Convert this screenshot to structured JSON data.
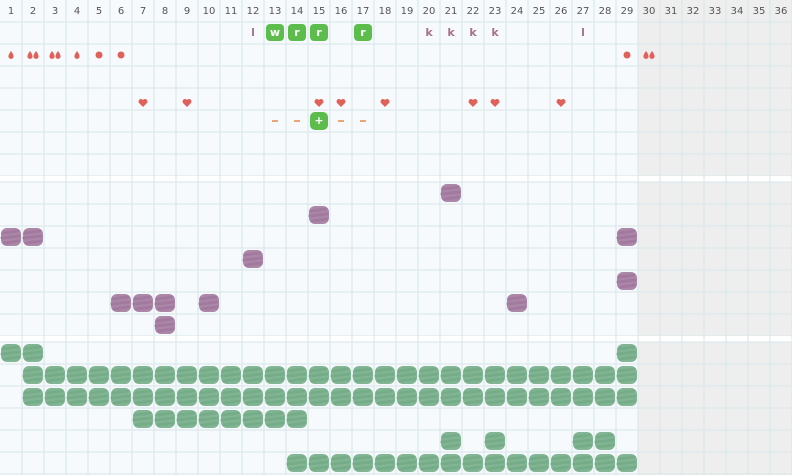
{
  "columns": [
    1,
    2,
    3,
    4,
    5,
    6,
    7,
    8,
    9,
    10,
    11,
    12,
    13,
    14,
    15,
    16,
    17,
    18,
    19,
    20,
    21,
    22,
    23,
    24,
    25,
    26,
    27,
    28,
    29,
    30,
    31,
    32,
    33,
    34,
    35,
    36
  ],
  "tags": [
    "l",
    "w",
    "r",
    "r",
    "r",
    "k",
    "k",
    "k",
    "k",
    "l"
  ],
  "plus": "+"
}
